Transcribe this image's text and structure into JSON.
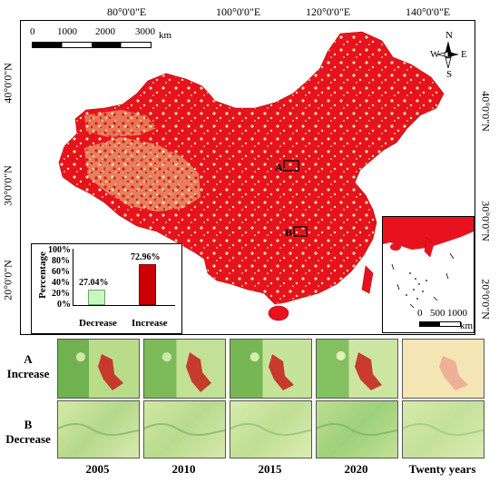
{
  "longitude_labels": [
    "80°0'0\"E",
    "100°0'0\"E",
    "120°0'0\"E",
    "140°0'0\"E"
  ],
  "latitude_labels": [
    "40°0'0\"N",
    "30°0'0\"N",
    "20°0'0\"N"
  ],
  "scale_bar": {
    "ticks": [
      "0",
      "1000",
      "2000",
      "3000"
    ],
    "unit": "km"
  },
  "inset_scale_bar": {
    "ticks": [
      "0",
      "500",
      "1000"
    ],
    "unit": "km"
  },
  "compass": {
    "n": "N",
    "s": "S",
    "e": "E",
    "w": "W"
  },
  "map_markers": {
    "a": "A",
    "b": "B"
  },
  "colors": {
    "increase": "#e8121e",
    "decrease": "#c9e8a7",
    "bar_increase": "#cc0000",
    "bar_decrease": "#c9f5c0"
  },
  "chart_data": {
    "type": "bar",
    "categories": [
      "Decrease",
      "Increase"
    ],
    "values": [
      27.04,
      72.96
    ],
    "data_labels": [
      "27.04%",
      "72.96%"
    ],
    "ylabel": "Percentage",
    "yticks": [
      "0%",
      "20%",
      "40%",
      "60%",
      "80%",
      "100%"
    ],
    "ylim": [
      0,
      100
    ]
  },
  "panels": {
    "row_a": {
      "letter": "A",
      "label": "Increase"
    },
    "row_b": {
      "letter": "B",
      "label": "Decrease"
    },
    "columns": [
      "2005",
      "2010",
      "2015",
      "2020",
      "Twenty years"
    ]
  }
}
